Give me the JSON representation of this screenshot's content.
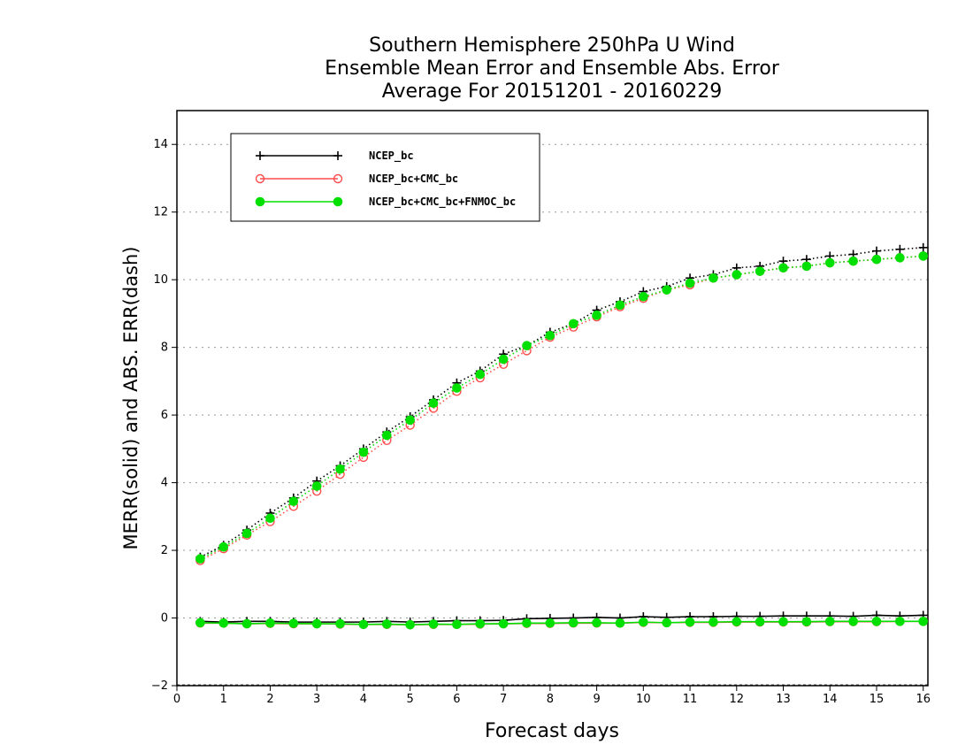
{
  "chart_data": {
    "type": "line",
    "title_lines": [
      "Southern Hemisphere 250hPa U Wind",
      "Ensemble Mean Error and Ensemble Abs. Error",
      "Average For 20151201 - 20160229"
    ],
    "xlabel": "Forecast days",
    "ylabel": "MERR(solid) and ABS. ERR(dash)",
    "xlim": [
      0,
      16.1
    ],
    "ylim": [
      -2,
      15
    ],
    "x_ticks": [
      "0",
      "1",
      "2",
      "3",
      "4",
      "5",
      "6",
      "7",
      "8",
      "9",
      "10",
      "11",
      "12",
      "13",
      "14",
      "15",
      "16"
    ],
    "y_ticks": [
      "-2",
      "0",
      "2",
      "4",
      "6",
      "8",
      "10",
      "12",
      "14"
    ],
    "grid": "horizontal dotted",
    "legend_position": "top-left",
    "x": [
      0.5,
      1,
      1.5,
      2,
      2.5,
      3,
      3.5,
      4,
      4.5,
      5,
      5.5,
      6,
      6.5,
      7,
      7.5,
      8,
      8.5,
      9,
      9.5,
      10,
      10.5,
      11,
      11.5,
      12,
      12.5,
      13,
      13.5,
      14,
      14.5,
      15,
      15.5,
      16
    ],
    "series": [
      {
        "name": "NCEP_bc",
        "color": "#000000",
        "marker": "plus",
        "abs_err": [
          1.8,
          2.15,
          2.6,
          3.1,
          3.55,
          4.05,
          4.5,
          5.0,
          5.5,
          5.95,
          6.45,
          6.95,
          7.3,
          7.8,
          8.05,
          8.45,
          8.7,
          9.1,
          9.35,
          9.65,
          9.8,
          10.05,
          10.15,
          10.35,
          10.4,
          10.55,
          10.6,
          10.7,
          10.75,
          10.85,
          10.9,
          10.95
        ],
        "mean_err": [
          -0.1,
          -0.12,
          -0.1,
          -0.1,
          -0.12,
          -0.12,
          -0.12,
          -0.12,
          -0.1,
          -0.12,
          -0.1,
          -0.08,
          -0.08,
          -0.07,
          -0.02,
          -0.01,
          0.0,
          0.02,
          0.0,
          0.04,
          0.02,
          0.04,
          0.04,
          0.05,
          0.05,
          0.06,
          0.06,
          0.06,
          0.05,
          0.08,
          0.06,
          0.08
        ]
      },
      {
        "name": "NCEP_bc+CMC_bc",
        "color": "#ff4d4d",
        "marker": "open-circle",
        "abs_err": [
          1.7,
          2.05,
          2.45,
          2.85,
          3.3,
          3.75,
          4.25,
          4.75,
          5.25,
          5.7,
          6.2,
          6.7,
          7.1,
          7.5,
          7.9,
          8.3,
          8.6,
          8.9,
          9.2,
          9.45,
          9.7,
          9.85,
          10.05,
          10.15,
          10.25,
          10.35,
          10.4,
          10.5,
          10.55,
          10.6,
          10.65,
          10.7
        ],
        "mean_err": [
          -0.15,
          -0.15,
          -0.17,
          -0.16,
          -0.17,
          -0.17,
          -0.18,
          -0.19,
          -0.19,
          -0.2,
          -0.19,
          -0.19,
          -0.18,
          -0.17,
          -0.16,
          -0.16,
          -0.15,
          -0.15,
          -0.15,
          -0.13,
          -0.14,
          -0.13,
          -0.13,
          -0.12,
          -0.12,
          -0.12,
          -0.12,
          -0.11,
          -0.11,
          -0.11,
          -0.1,
          -0.1
        ]
      },
      {
        "name": "NCEP_bc+CMC_bc+FNMOC_bc",
        "color": "#00e000",
        "marker": "filled-circle",
        "abs_err": [
          1.75,
          2.1,
          2.5,
          2.95,
          3.45,
          3.9,
          4.4,
          4.9,
          5.4,
          5.85,
          6.35,
          6.8,
          7.2,
          7.65,
          8.05,
          8.35,
          8.7,
          8.95,
          9.25,
          9.5,
          9.7,
          9.9,
          10.05,
          10.15,
          10.25,
          10.35,
          10.4,
          10.5,
          10.55,
          10.6,
          10.65,
          10.7
        ],
        "mean_err": [
          -0.14,
          -0.15,
          -0.17,
          -0.15,
          -0.16,
          -0.17,
          -0.17,
          -0.19,
          -0.18,
          -0.2,
          -0.18,
          -0.19,
          -0.17,
          -0.17,
          -0.15,
          -0.15,
          -0.14,
          -0.14,
          -0.15,
          -0.12,
          -0.14,
          -0.12,
          -0.12,
          -0.11,
          -0.11,
          -0.11,
          -0.11,
          -0.1,
          -0.1,
          -0.1,
          -0.1,
          -0.1
        ]
      }
    ]
  }
}
